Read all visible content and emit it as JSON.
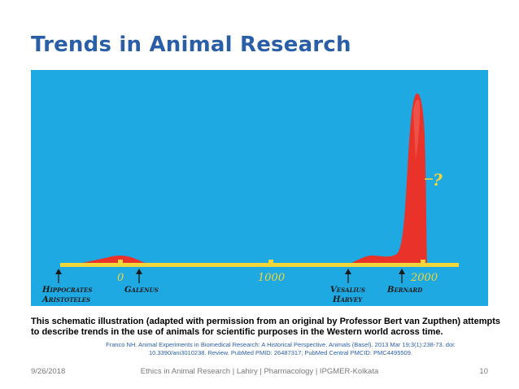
{
  "slide": {
    "title": "Trends in Animal Research",
    "caption": "This schematic illustration (adapted with permission from an original by Professor Bert van Zupthen) attempts to describe trends in the use of animals for scientific purposes in the Western world across time.",
    "citation": "Franco NH. Animal Experiments in Biomedical Research: A Historical Perspective. Animals (Basel). 2013 Mar 19;3(1):238-73. doi: 10.3390/ani3010238. Review. PubMed PMID: 26487317; PubMed Central PMCID: PMC4495509."
  },
  "figure": {
    "background_color": "#1fa9e2",
    "curve_color": "#e8322a",
    "axis_color": "#f0d63a",
    "tick_labels": [
      "0",
      "1000",
      "2000"
    ],
    "question_mark": "?",
    "names": {
      "hippocrates": "Hippocrates",
      "aristoteles": "Aristoteles",
      "galenus": "Galenus",
      "vesalius": "Vesalius",
      "harvey": "Harvey",
      "bernard": "Bernard"
    }
  },
  "footer": {
    "date": "9/26/2018",
    "center": "Ethics in Animal Research | Lahiry | Pharmacology | IPGMER-Kolkata",
    "page": "10"
  }
}
